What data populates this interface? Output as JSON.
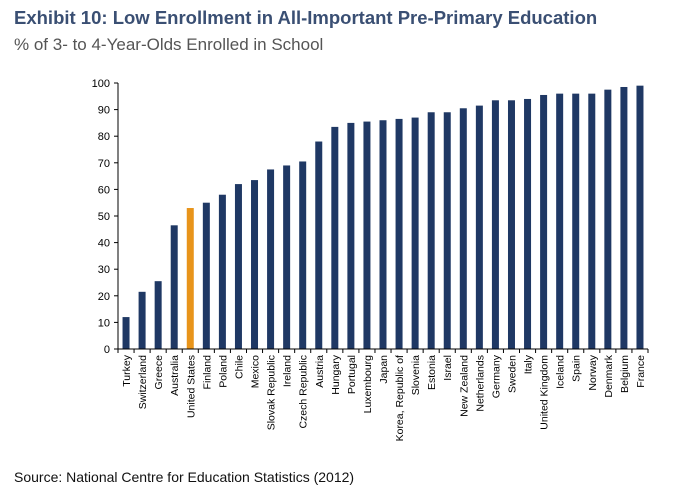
{
  "title": "Exhibit 10: Low Enrollment in All-Important Pre-Primary Education",
  "subtitle": "% of 3- to 4-Year-Olds Enrolled in School",
  "source": "Source:  National Centre for Education Statistics (2012)",
  "colors": {
    "bar": "#1f3864",
    "highlight": "#e8941a",
    "axis": "#000000"
  },
  "chart_data": {
    "type": "bar",
    "title": "",
    "xlabel": "",
    "ylabel": "",
    "ylim": [
      0,
      100
    ],
    "yticks": [
      0,
      10,
      20,
      30,
      40,
      50,
      60,
      70,
      80,
      90,
      100
    ],
    "grid": false,
    "highlight_category": "United States",
    "categories": [
      "Turkey",
      "Switzerland",
      "Greece",
      "Australia",
      "United States",
      "Finland",
      "Poland",
      "Chile",
      "Mexico",
      "Slovak Republic",
      "Ireland",
      "Czech Republic",
      "Austria",
      "Hungary",
      "Portugal",
      "Luxembourg",
      "Japan",
      "Korea, Republic of",
      "Slovenia",
      "Estonia",
      "Israel",
      "New Zealand",
      "Netherlands",
      "Germany",
      "Sweden",
      "Italy",
      "United Kingdom",
      "Iceland",
      "Spain",
      "Norway",
      "Denmark",
      "Belgium",
      "France"
    ],
    "values": [
      12,
      21.5,
      25.5,
      46.5,
      53,
      55,
      58,
      62,
      63.5,
      67.5,
      69,
      70.5,
      78,
      83.5,
      85,
      85.5,
      86,
      86.5,
      87,
      89,
      89,
      90.5,
      91.5,
      93.5,
      93.5,
      94,
      95.5,
      96,
      96,
      96,
      97.5,
      98.5,
      99
    ]
  }
}
